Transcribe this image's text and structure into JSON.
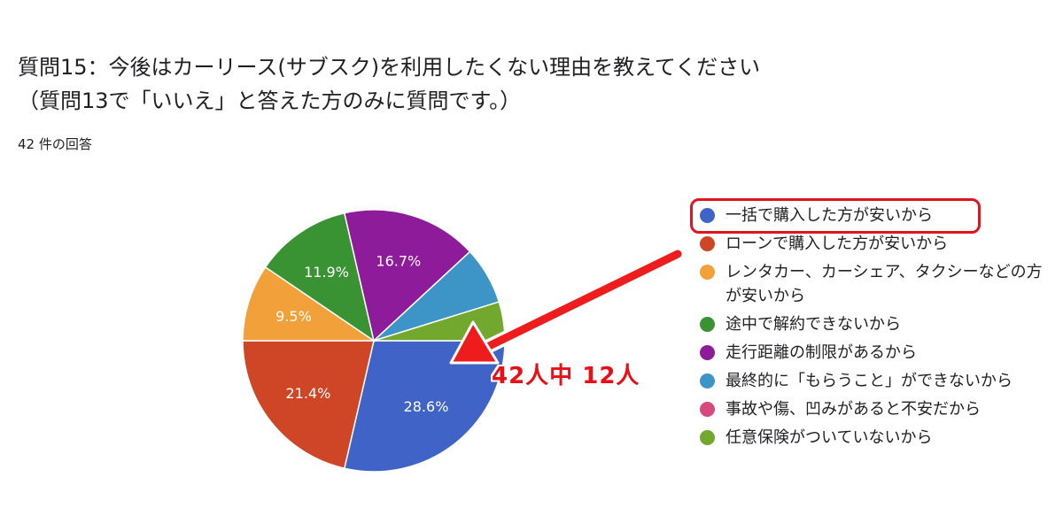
{
  "header": {
    "title": "質問15：今後はカーリース(サブスク)を利用したくない理由を教えてください",
    "subtitle": "（質問13で「いいえ」と答えた方のみに質問です。）",
    "response_count": "42 件の回答"
  },
  "annotation": {
    "text": "42人中 12人",
    "color": "#e80f16"
  },
  "chart_data": {
    "type": "pie",
    "start": "90deg-clockwise-from-3-oclock",
    "slices": [
      {
        "label": "一括で購入した方が安いから",
        "value": 28.6,
        "display": "28.6%",
        "color": "#3f63c6"
      },
      {
        "label": "ローンで購入した方が安いから",
        "value": 21.4,
        "display": "21.4%",
        "color": "#cf4627"
      },
      {
        "label": "レンタカー、カーシェア、タクシーなどの方が安いから",
        "value": 9.5,
        "display": "9.5%",
        "color": "#f2a13a"
      },
      {
        "label": "途中で解約できないから",
        "value": 11.9,
        "display": "11.9%",
        "color": "#3a9332"
      },
      {
        "label": "走行距離の制限があるから",
        "value": 16.7,
        "display": "16.7%",
        "color": "#8e1b99"
      },
      {
        "label": "最終的に「もらうこと」ができないから",
        "value": 7.1,
        "display": "",
        "color": "#3d94c6"
      },
      {
        "label": "事故や傷、凹みがあると不安だから",
        "value": 0,
        "display": "",
        "color": "#d64b7f"
      },
      {
        "label": "任意保険がついていないから",
        "value": 4.8,
        "display": "",
        "color": "#72a82e"
      }
    ]
  }
}
